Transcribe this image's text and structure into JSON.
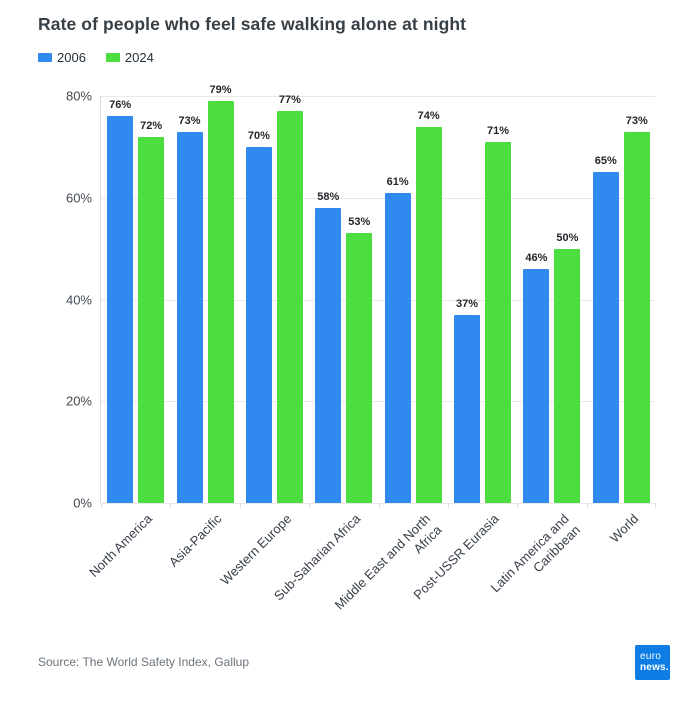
{
  "title": "Rate of people who feel safe walking alone at night",
  "legend": [
    {
      "label": "2006",
      "color": "#3089EE"
    },
    {
      "label": "2024",
      "color": "#4CDD3F"
    }
  ],
  "source": "Source: The World Safety Index, Gallup",
  "logo": {
    "line1": "euro",
    "line2": "news.",
    "background": "#0D7DE5"
  },
  "chart_data": {
    "type": "bar",
    "categories": [
      "North America",
      "Asia-Pacific",
      "Western Europe",
      "Sub-Saharian Africa",
      "Middle East and North\nAfrica",
      "Post-USSR Eurasia",
      "Latin America and\nCaribbean",
      "World"
    ],
    "series": [
      {
        "name": "2006",
        "color": "#3089EE",
        "values": [
          76,
          73,
          70,
          58,
          61,
          37,
          46,
          65
        ]
      },
      {
        "name": "2024",
        "color": "#4CDD3F",
        "values": [
          72,
          79,
          77,
          53,
          74,
          71,
          50,
          73
        ]
      }
    ],
    "title": "Rate of people who feel safe walking alone at night",
    "xlabel": "",
    "ylabel": "",
    "ylim": [
      0,
      80
    ],
    "yticks": [
      0,
      20,
      40,
      60,
      80
    ],
    "ytick_suffix": "%",
    "value_label_suffix": "%",
    "grid": true,
    "legend_position": "top-left"
  }
}
